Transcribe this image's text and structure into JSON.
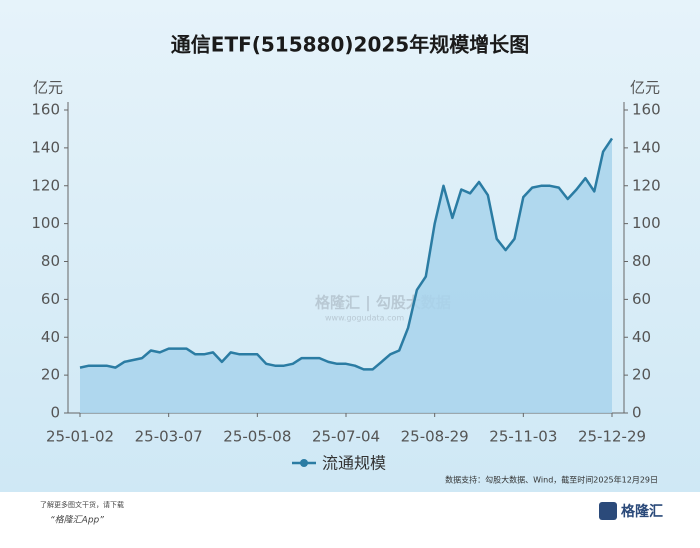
{
  "chart_data": {
    "type": "area",
    "title": "通信ETF(515880)2025年规模增长图",
    "y_label": "亿元",
    "y2_label": "亿元",
    "categories": [
      "25-01-02",
      null,
      null,
      null,
      null,
      null,
      null,
      null,
      null,
      null,
      "25-03-07",
      null,
      null,
      null,
      null,
      null,
      null,
      null,
      null,
      null,
      "25-05-08",
      null,
      null,
      null,
      null,
      null,
      null,
      null,
      null,
      null,
      "25-07-04",
      null,
      null,
      null,
      null,
      null,
      null,
      null,
      null,
      null,
      "25-08-29",
      null,
      null,
      null,
      null,
      null,
      null,
      null,
      null,
      null,
      "25-11-03",
      null,
      null,
      null,
      null,
      null,
      null,
      null,
      null,
      null,
      "25-12-29"
    ],
    "series": [
      {
        "name": "流通规模",
        "color": "#2b7ca3",
        "fill": "#a8d4ec",
        "values": [
          24,
          25,
          25,
          25,
          24,
          27,
          28,
          29,
          33,
          32,
          34,
          34,
          34,
          31,
          31,
          32,
          27,
          32,
          31,
          31,
          31,
          26,
          25,
          25,
          26,
          29,
          29,
          29,
          27,
          26,
          26,
          25,
          23,
          23,
          27,
          31,
          33,
          45,
          65,
          72,
          100,
          120,
          103,
          118,
          116,
          122,
          115,
          92,
          86,
          92,
          114,
          119,
          120,
          120,
          119,
          113,
          118,
          124,
          117,
          138,
          145
        ]
      }
    ],
    "ylim": [
      0,
      160
    ],
    "yticks": [
      0,
      20,
      40,
      60,
      80,
      100,
      120,
      140,
      160
    ],
    "y2lim": [
      0,
      160
    ],
    "y2ticks": [
      0,
      20,
      40,
      60,
      80,
      100,
      120,
      140,
      160
    ],
    "watermark": "格隆汇 | 勾股大数据",
    "watermark_url": "www.gogudata.com",
    "source": "数据支持：勾股大数据、Wind，截至时间2025年12月29日",
    "notes": [
      "了解更多图文干货，请下载",
      "“格隆汇App”"
    ],
    "brand": "格隆汇"
  }
}
